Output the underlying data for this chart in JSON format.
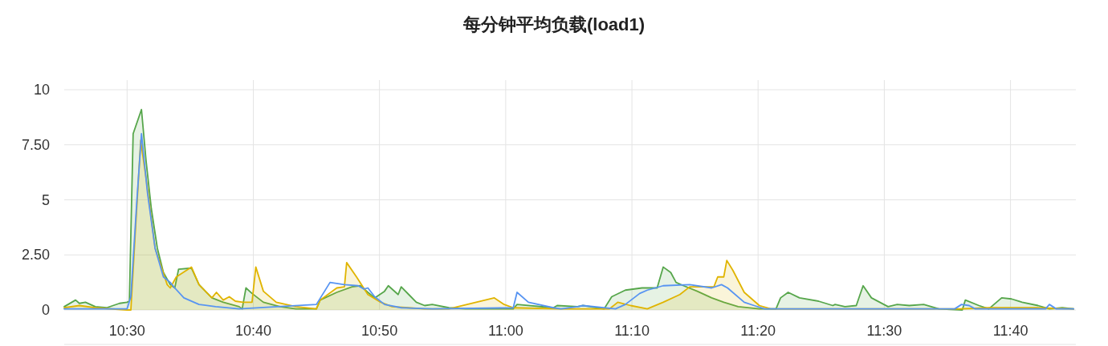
{
  "chart_data": {
    "type": "area",
    "title": "每分钟平均负载(load1)",
    "xlim": [
      10.417,
      11.753
    ],
    "ylim": [
      0,
      10
    ],
    "xticks": [
      {
        "value": 10.5,
        "label": "10:30"
      },
      {
        "value": 10.6667,
        "label": "10:40"
      },
      {
        "value": 10.8333,
        "label": "10:50"
      },
      {
        "value": 11.0,
        "label": "11:00"
      },
      {
        "value": 11.1667,
        "label": "11:10"
      },
      {
        "value": 11.3333,
        "label": "11:20"
      },
      {
        "value": 11.5,
        "label": "11:30"
      },
      {
        "value": 11.6667,
        "label": "11:40"
      }
    ],
    "yticks": [
      0,
      {
        "value": 2.5,
        "label": "2.50"
      },
      5,
      {
        "value": 7.5,
        "label": "7.50"
      },
      10
    ],
    "grid": true,
    "marker": "none",
    "line_style": "solid",
    "series": [
      {
        "color": "#56a64b",
        "x": [
          10.417,
          10.432,
          10.437,
          10.445,
          10.458,
          10.473,
          10.49,
          10.5,
          10.503,
          10.508,
          10.519,
          10.525,
          10.532,
          10.54,
          10.548,
          10.557,
          10.563,
          10.568,
          10.585,
          10.595,
          10.612,
          10.627,
          10.648,
          10.652,
          10.657,
          10.665,
          10.68,
          10.702,
          10.723,
          10.75,
          10.755,
          10.777,
          10.797,
          10.808,
          10.818,
          10.827,
          10.84,
          10.845,
          10.858,
          10.862,
          10.872,
          10.882,
          10.893,
          10.903,
          10.925,
          10.947,
          11.01,
          11.015,
          11.063,
          11.068,
          11.095,
          11.102,
          11.13,
          11.14,
          11.158,
          11.18,
          11.2,
          11.208,
          11.218,
          11.225,
          11.235,
          11.253,
          11.272,
          11.288,
          11.307,
          11.335,
          11.357,
          11.363,
          11.373,
          11.388,
          11.413,
          11.432,
          11.435,
          11.448,
          11.463,
          11.472,
          11.483,
          11.505,
          11.517,
          11.533,
          11.552,
          11.572,
          11.603,
          11.607,
          11.625,
          11.638,
          11.655,
          11.668,
          11.682,
          11.703,
          11.718,
          11.735,
          11.75
        ],
        "values": [
          0.15,
          0.45,
          0.3,
          0.35,
          0.15,
          0.1,
          0.3,
          0.35,
          0.4,
          8,
          9.1,
          6.8,
          4.6,
          2.8,
          1.7,
          1.15,
          1.0,
          1.85,
          1.9,
          1.15,
          0.55,
          0.35,
          0.15,
          0.05,
          1.0,
          0.75,
          0.35,
          0.15,
          0.05,
          0.05,
          0.45,
          0.8,
          1.05,
          1.1,
          0.8,
          0.55,
          0.85,
          1.1,
          0.7,
          1.05,
          0.7,
          0.35,
          0.2,
          0.25,
          0.1,
          0.05,
          0.05,
          0.25,
          0.1,
          0.2,
          0.15,
          0.2,
          0.05,
          0.6,
          0.9,
          1.0,
          1.0,
          1.95,
          1.7,
          1.25,
          1.1,
          0.85,
          0.55,
          0.35,
          0.15,
          0.05,
          0.05,
          0.55,
          0.8,
          0.55,
          0.4,
          0.2,
          0.25,
          0.15,
          0.2,
          1.1,
          0.55,
          0.15,
          0.25,
          0.2,
          0.25,
          0.05,
          0,
          0.45,
          0.2,
          0.05,
          0.55,
          0.5,
          0.35,
          0.2,
          0.05,
          0.1,
          0.05
        ]
      },
      {
        "color": "#e0b400",
        "x": [
          10.417,
          10.437,
          10.458,
          10.5,
          10.505,
          10.51,
          10.518,
          10.525,
          10.537,
          10.553,
          10.557,
          10.565,
          10.585,
          10.595,
          10.612,
          10.618,
          10.627,
          10.635,
          10.643,
          10.653,
          10.665,
          10.67,
          10.68,
          10.697,
          10.723,
          10.75,
          10.755,
          10.777,
          10.787,
          10.79,
          10.803,
          10.818,
          10.835,
          10.85,
          10.872,
          10.893,
          10.925,
          10.985,
          10.998,
          11.01,
          11.073,
          11.095,
          11.137,
          11.148,
          11.165,
          11.187,
          11.208,
          11.23,
          11.243,
          11.272,
          11.275,
          11.28,
          11.288,
          11.292,
          11.3,
          11.315,
          11.335,
          11.35,
          11.6,
          11.638,
          11.7,
          11.75
        ],
        "values": [
          0.1,
          0.2,
          0.1,
          0,
          0,
          3,
          7.7,
          6,
          2.8,
          1.15,
          1.0,
          1.5,
          1.95,
          1.15,
          0.55,
          0.8,
          0.45,
          0.6,
          0.4,
          0.35,
          0.35,
          1.95,
          0.85,
          0.35,
          0.15,
          0.05,
          0.45,
          1.0,
          1.05,
          2.15,
          1.5,
          0.7,
          0.35,
          0.15,
          0.1,
          0.05,
          0.05,
          0.55,
          0.25,
          0.1,
          0.05,
          0.05,
          0.05,
          0.35,
          0.2,
          0.05,
          0.35,
          0.7,
          1.05,
          1.05,
          1.05,
          1.5,
          1.5,
          2.25,
          1.8,
          0.8,
          0.2,
          0.05,
          0.05,
          0.1,
          0.1,
          0.05
        ]
      },
      {
        "color": "#5794f2",
        "type": "line",
        "x": [
          10.417,
          10.5,
          10.505,
          10.513,
          10.519,
          10.527,
          10.537,
          10.548,
          10.557,
          10.563,
          10.575,
          10.595,
          10.617,
          10.648,
          10.75,
          10.768,
          10.787,
          10.805,
          10.813,
          10.818,
          10.827,
          10.84,
          10.862,
          10.903,
          11.01,
          11.015,
          11.03,
          11.063,
          11.073,
          11.095,
          11.102,
          11.145,
          11.158,
          11.177,
          11.187,
          11.208,
          11.243,
          11.272,
          11.285,
          11.293,
          11.315,
          11.328,
          11.342,
          11.593,
          11.602,
          11.612,
          11.62,
          11.713,
          11.718,
          11.727,
          11.75
        ],
        "values": [
          0.05,
          0.05,
          0.6,
          5,
          8.0,
          5.3,
          2.8,
          1.5,
          1.25,
          1.0,
          0.55,
          0.25,
          0.15,
          0.05,
          0.25,
          1.25,
          1.15,
          1.1,
          0.95,
          1.0,
          0.6,
          0.25,
          0.1,
          0.05,
          0.1,
          0.8,
          0.35,
          0.1,
          0.05,
          0.15,
          0.2,
          0.05,
          0.25,
          0.75,
          0.9,
          1.1,
          1.15,
          1.0,
          1.15,
          1.0,
          0.35,
          0.2,
          0.05,
          0.05,
          0.25,
          0.2,
          0.05,
          0.05,
          0.25,
          0.05,
          0.05
        ]
      }
    ]
  }
}
